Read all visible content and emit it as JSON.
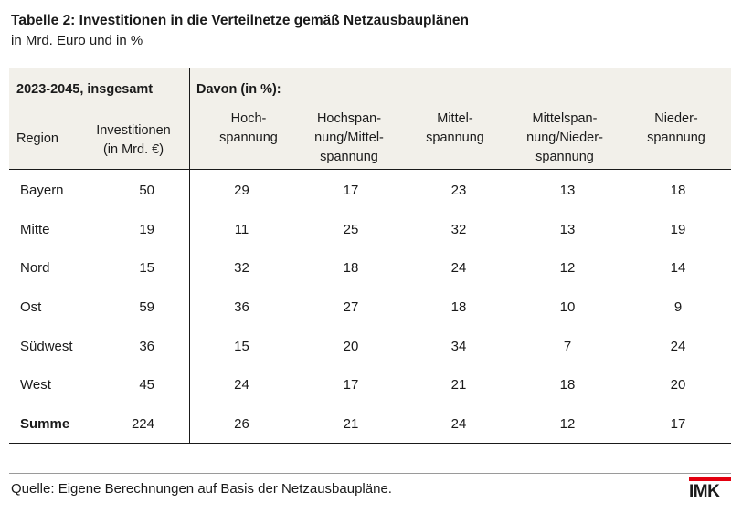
{
  "title": "Tabelle 2: Investitionen in die Verteilnetze gemäß Netzausbauplänen",
  "subtitle": "in Mrd. Euro und in %",
  "header": {
    "period": "2023-2045, insgesamt",
    "share": "Davon (in %):",
    "region": "Region",
    "invest_line1": "Investitionen",
    "invest_line2": "(in Mrd. €)",
    "col1": [
      "Hoch-",
      "spannung"
    ],
    "col2": [
      "Hochspan-",
      "nung/Mittel-",
      "spannung"
    ],
    "col3": [
      "Mittel-",
      "spannung"
    ],
    "col4": [
      "Mittelspan-",
      "nung/Nieder-",
      "spannung"
    ],
    "col5": [
      "Nieder-",
      "spannung"
    ]
  },
  "rows": [
    {
      "region": "Bayern",
      "invest": "50",
      "v": [
        "29",
        "17",
        "23",
        "13",
        "18"
      ]
    },
    {
      "region": "Mitte",
      "invest": "19",
      "v": [
        "11",
        "25",
        "32",
        "13",
        "19"
      ]
    },
    {
      "region": "Nord",
      "invest": "15",
      "v": [
        "32",
        "18",
        "24",
        "12",
        "14"
      ]
    },
    {
      "region": "Ost",
      "invest": "59",
      "v": [
        "36",
        "27",
        "18",
        "10",
        "9"
      ]
    },
    {
      "region": "Südwest",
      "invest": "36",
      "v": [
        "15",
        "20",
        "34",
        "7",
        "24"
      ]
    },
    {
      "region": "West",
      "invest": "45",
      "v": [
        "24",
        "17",
        "21",
        "18",
        "20"
      ]
    },
    {
      "region": "Summe",
      "invest": "224",
      "v": [
        "26",
        "21",
        "24",
        "12",
        "17"
      ]
    }
  ],
  "source": "Quelle: Eigene Berechnungen auf Basis der Netzausbaupläne.",
  "logo": "IMK",
  "colors": {
    "header_bg": "#f2f0ea",
    "logo_red": "#e3000f"
  }
}
